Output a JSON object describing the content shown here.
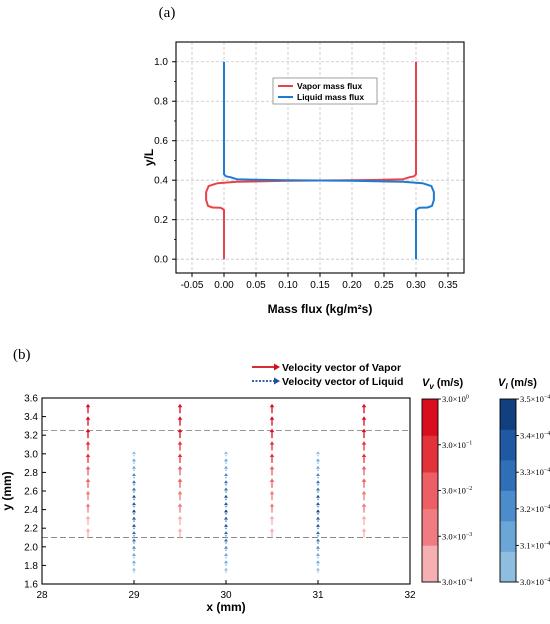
{
  "panel_a_label": "(a)",
  "panel_b_label": "(b)",
  "chart_data": [
    {
      "type": "line",
      "xlabel": "Mass flux (kg/m²s)",
      "ylabel": "y/L",
      "xlim": [
        -0.075,
        0.375
      ],
      "ylim": [
        -0.07,
        1.1
      ],
      "xticks": [
        "-0.05",
        "0.00",
        "0.05",
        "0.10",
        "0.15",
        "0.20",
        "0.25",
        "0.30",
        "0.35"
      ],
      "yticks": [
        "0.0",
        "0.2",
        "0.4",
        "0.6",
        "0.8",
        "1.0"
      ],
      "grid": true,
      "legend_position": "top-center",
      "series": [
        {
          "name": "Vapor mass flux",
          "color": "#e8434a",
          "points": [
            [
              0.0,
              0.0
            ],
            [
              0.0,
              0.25
            ],
            [
              -0.005,
              0.26
            ],
            [
              -0.018,
              0.262
            ],
            [
              -0.025,
              0.27
            ],
            [
              -0.028,
              0.3
            ],
            [
              -0.028,
              0.34
            ],
            [
              -0.024,
              0.37
            ],
            [
              -0.01,
              0.385
            ],
            [
              0.02,
              0.392
            ],
            [
              0.1,
              0.397
            ],
            [
              0.2,
              0.4
            ],
            [
              0.25,
              0.402
            ],
            [
              0.28,
              0.405
            ],
            [
              0.29,
              0.415
            ],
            [
              0.297,
              0.42
            ],
            [
              0.3,
              0.43
            ],
            [
              0.3,
              1.0
            ]
          ]
        },
        {
          "name": "Liquid mass flux",
          "color": "#1f7bd1",
          "points": [
            [
              0.3,
              0.0
            ],
            [
              0.3,
              0.25
            ],
            [
              0.305,
              0.26
            ],
            [
              0.318,
              0.262
            ],
            [
              0.325,
              0.27
            ],
            [
              0.328,
              0.3
            ],
            [
              0.328,
              0.34
            ],
            [
              0.324,
              0.37
            ],
            [
              0.31,
              0.385
            ],
            [
              0.28,
              0.392
            ],
            [
              0.2,
              0.397
            ],
            [
              0.1,
              0.4
            ],
            [
              0.05,
              0.402
            ],
            [
              0.02,
              0.405
            ],
            [
              0.01,
              0.415
            ],
            [
              0.003,
              0.42
            ],
            [
              0.0,
              0.43
            ],
            [
              0.0,
              1.0
            ]
          ]
        }
      ]
    },
    {
      "type": "scatter",
      "xlabel": "x (mm)",
      "ylabel": "y (mm)",
      "xlim": [
        28,
        32
      ],
      "ylim": [
        1.6,
        3.6
      ],
      "xticks": [
        "28",
        "29",
        "30",
        "31",
        "32"
      ],
      "yticks": [
        "1.6",
        "1.8",
        "2.0",
        "2.2",
        "2.4",
        "2.6",
        "2.8",
        "3.0",
        "3.2",
        "3.4",
        "3.6"
      ],
      "reference_lines_y": [
        2.1,
        3.25
      ],
      "legend_position": "top-right",
      "series": [
        {
          "name": "Velocity vector of Vapor",
          "color": "#d40d1c",
          "x_positions": [
            28.5,
            29.5,
            30.5,
            31.5
          ],
          "y_range": [
            2.1,
            3.57
          ]
        },
        {
          "name": "Velocity vector of Liquid",
          "color": "#1d4f97",
          "x_positions": [
            29.0,
            30.0,
            31.0
          ],
          "y_range": [
            1.72,
            3.05
          ]
        }
      ],
      "colorbars": [
        {
          "title_main": "V",
          "title_sub": "v",
          "title_unit": " (m/s)",
          "scale": "log",
          "ticks": [
            {
              "mantissa": "3.0×10",
              "exp": "0"
            },
            {
              "mantissa": "3.0×10",
              "exp": "−1"
            },
            {
              "mantissa": "3.0×10",
              "exp": "−2"
            },
            {
              "mantissa": "3.0×10",
              "exp": "−3"
            },
            {
              "mantissa": "3.0×10",
              "exp": "−4"
            }
          ],
          "colors": [
            "#f7b0b2",
            "#f07b80",
            "#eb5f65",
            "#e3323a",
            "#d80e1e"
          ]
        },
        {
          "title_main": "V",
          "title_sub": "l",
          "title_unit": " (m/s)",
          "scale": "linear",
          "ticks": [
            {
              "mantissa": "3.5×10",
              "exp": "−4"
            },
            {
              "mantissa": "3.4×10",
              "exp": "−4"
            },
            {
              "mantissa": "3.3×10",
              "exp": "−4"
            },
            {
              "mantissa": "3.2×10",
              "exp": "−4"
            },
            {
              "mantissa": "3.1×10",
              "exp": "−4"
            },
            {
              "mantissa": "3.0×10",
              "exp": "−4"
            }
          ],
          "colors": [
            "#8fbde0",
            "#6aa6d6",
            "#4b8ccb",
            "#2f6fb7",
            "#1f58a3",
            "#12407f"
          ]
        }
      ]
    }
  ]
}
